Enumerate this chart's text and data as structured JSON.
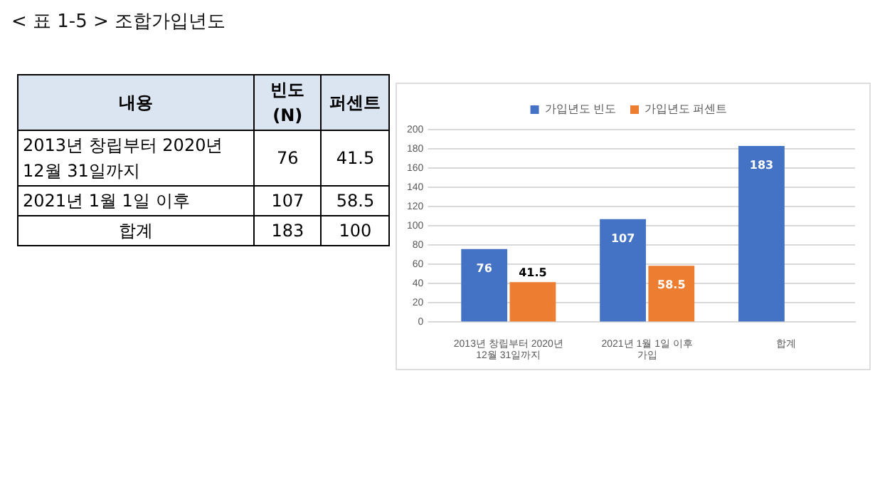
{
  "chart_data": [
    {
      "type": "other",
      "title": "< 표 1-5 > 조합가입년도",
      "xlabel": "내용",
      "categories": [
        "2013년 창립부터 2020년 12월 31일까지",
        "2021년 1월 1일 이후",
        "합계"
      ],
      "series": [
        {
          "name": "빈도 (N)",
          "values": [
            76,
            107,
            183
          ]
        },
        {
          "name": "퍼센트",
          "values": [
            41.5,
            58.5,
            100
          ]
        }
      ],
      "data_labels": true
    },
    {
      "type": "bar",
      "categories": [
        "2013년 창립부터 2020년 12월 31일까지",
        "2021년 1월 1일 이후 가입",
        "합계"
      ],
      "series": [
        {
          "name": "가입년도 빈도",
          "color": "#4472c4",
          "values": [
            76,
            107,
            183
          ]
        },
        {
          "name": "가입년도 퍼센트",
          "color": "#ed7d31",
          "values": [
            41.5,
            58.5,
            null
          ]
        }
      ],
      "ylim": [
        0,
        200
      ],
      "yticks": [
        0,
        20,
        40,
        60,
        80,
        100,
        120,
        140,
        160,
        180,
        200
      ],
      "grid": "y",
      "legend": "top",
      "data_labels": true
    }
  ]
}
